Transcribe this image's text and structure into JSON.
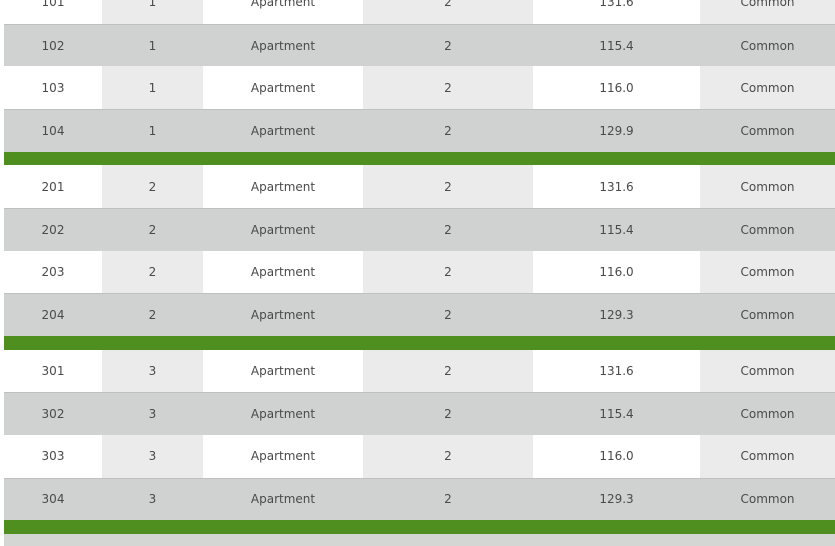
{
  "colors": {
    "separator": "#4f8f1f",
    "row_gray": "#d0d1d1",
    "row_white": "#ffffff",
    "col_alt": "#ebebeb"
  },
  "groups": [
    {
      "rows": [
        [
          "101",
          "1",
          "Apartment",
          "2",
          "131.6",
          "Common"
        ],
        [
          "102",
          "1",
          "Apartment",
          "2",
          "115.4",
          "Common"
        ],
        [
          "103",
          "1",
          "Apartment",
          "2",
          "116.0",
          "Common"
        ],
        [
          "104",
          "1",
          "Apartment",
          "2",
          "129.9",
          "Common"
        ]
      ]
    },
    {
      "rows": [
        [
          "201",
          "2",
          "Apartment",
          "2",
          "131.6",
          "Common"
        ],
        [
          "202",
          "2",
          "Apartment",
          "2",
          "115.4",
          "Common"
        ],
        [
          "203",
          "2",
          "Apartment",
          "2",
          "116.0",
          "Common"
        ],
        [
          "204",
          "2",
          "Apartment",
          "2",
          "129.3",
          "Common"
        ]
      ]
    },
    {
      "rows": [
        [
          "301",
          "3",
          "Apartment",
          "2",
          "131.6",
          "Common"
        ],
        [
          "302",
          "3",
          "Apartment",
          "2",
          "115.4",
          "Common"
        ],
        [
          "303",
          "3",
          "Apartment",
          "2",
          "116.0",
          "Common"
        ],
        [
          "304",
          "3",
          "Apartment",
          "2",
          "129.3",
          "Common"
        ]
      ]
    }
  ]
}
